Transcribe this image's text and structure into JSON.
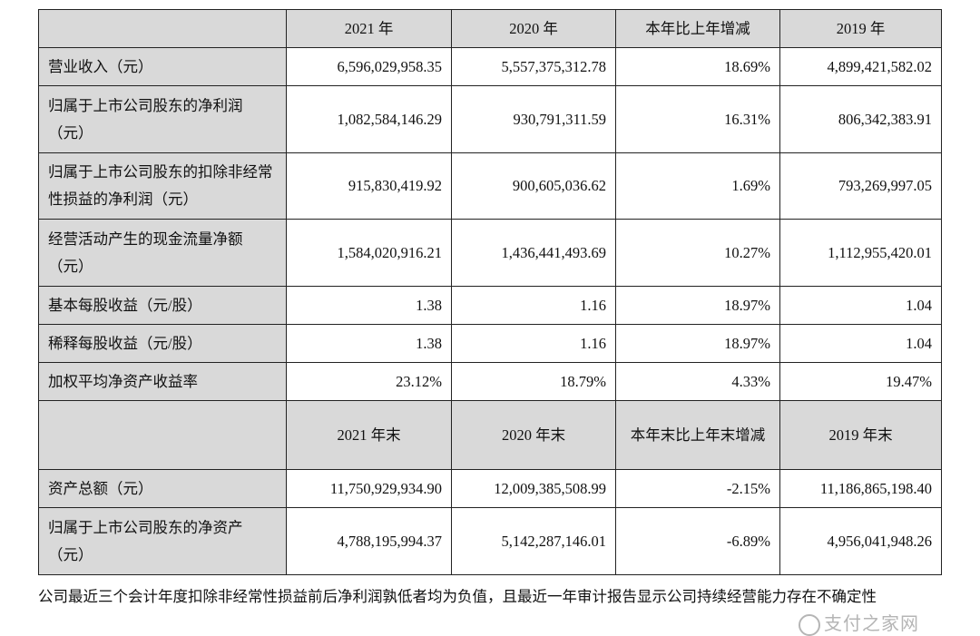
{
  "header1": [
    "",
    "2021 年",
    "2020 年",
    "本年比上年增减",
    "2019 年"
  ],
  "rows1": [
    {
      "label": "营业收入（元）",
      "values": [
        "6,596,029,958.35",
        "5,557,375,312.78",
        "18.69%",
        "4,899,421,582.02"
      ]
    },
    {
      "label": "归属于上市公司股东的净利润（元）",
      "values": [
        "1,082,584,146.29",
        "930,791,311.59",
        "16.31%",
        "806,342,383.91"
      ]
    },
    {
      "label": "归属于上市公司股东的扣除非经常性损益的净利润（元）",
      "values": [
        "915,830,419.92",
        "900,605,036.62",
        "1.69%",
        "793,269,997.05"
      ]
    },
    {
      "label": "经营活动产生的现金流量净额（元）",
      "values": [
        "1,584,020,916.21",
        "1,436,441,493.69",
        "10.27%",
        "1,112,955,420.01"
      ]
    },
    {
      "label": "基本每股收益（元/股）",
      "values": [
        "1.38",
        "1.16",
        "18.97%",
        "1.04"
      ]
    },
    {
      "label": "稀释每股收益（元/股）",
      "values": [
        "1.38",
        "1.16",
        "18.97%",
        "1.04"
      ]
    },
    {
      "label": "加权平均净资产收益率",
      "values": [
        "23.12%",
        "18.79%",
        "4.33%",
        "19.47%"
      ]
    }
  ],
  "header2": [
    "",
    "2021 年末",
    "2020 年末",
    "本年末比上年末增减",
    "2019 年末"
  ],
  "rows2": [
    {
      "label": "资产总额（元）",
      "values": [
        "11,750,929,934.90",
        "12,009,385,508.99",
        "-2.15%",
        "11,186,865,198.40"
      ]
    },
    {
      "label": "归属于上市公司股东的净资产（元）",
      "values": [
        "4,788,195,994.37",
        "5,142,287,146.01",
        "-6.89%",
        "4,956,041,948.26"
      ]
    }
  ],
  "footer": "公司最近三个会计年度扣除非经常性损益前后净利润孰低者均为负值，且最近一年审计报告显示公司持续经营能力存在不确定性",
  "watermark": "支付之家网"
}
